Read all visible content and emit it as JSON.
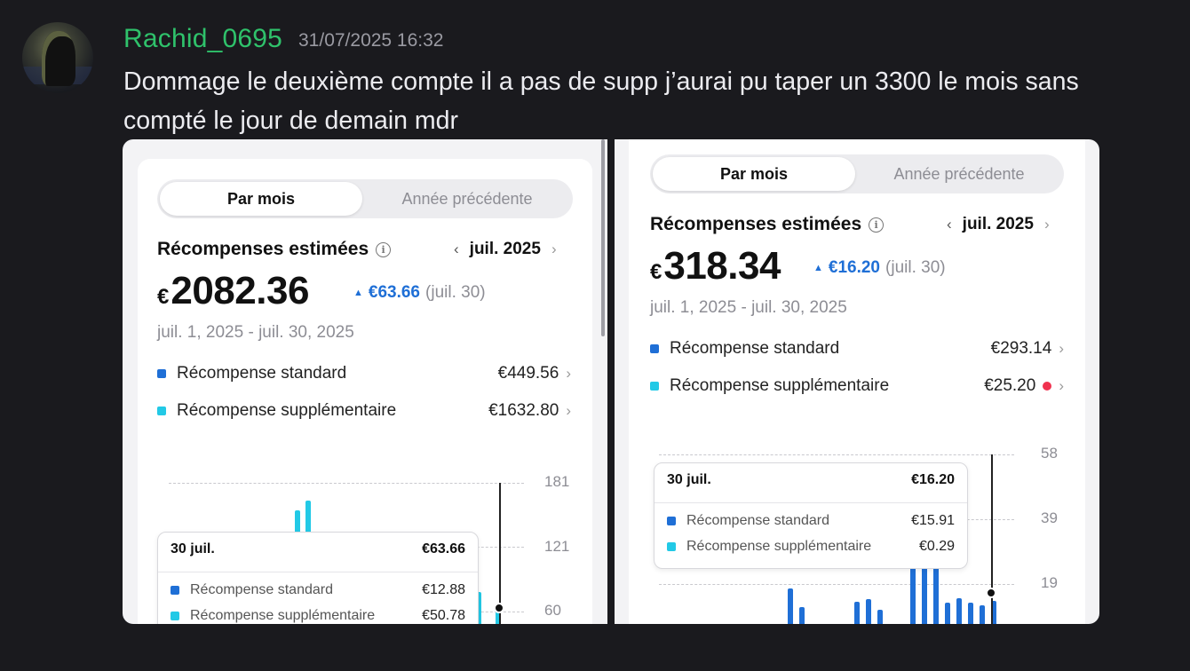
{
  "message": {
    "username": "Rachid_0695",
    "timestamp": "31/07/2025 16:32",
    "text": "Dommage le deuxième compte il a pas de supp j’aurai pu taper un 3300 le mois sans compté le jour de demain mdr"
  },
  "colors": {
    "standard": "#1f6fd6",
    "supplementaire": "#22c9e6",
    "delta": "#1f6fd6",
    "username": "#2fc26b"
  },
  "screenshots": [
    {
      "tab_active": "Par mois",
      "tab_inactive": "Année précédente",
      "title": "Récompenses estimées",
      "info_icon": "i",
      "month": "juil. 2025",
      "currency": "€",
      "amount": "2082.36",
      "delta": "€63.66",
      "delta_date": "(juil. 30)",
      "range": "juil. 1, 2025 - juil. 30, 2025",
      "rows": [
        {
          "label": "Récompense standard",
          "value": "€449.56"
        },
        {
          "label": "Récompense supplémentaire",
          "value": "€1632.80"
        }
      ],
      "axis_labels": [
        "181",
        "121",
        "60"
      ],
      "tooltip": {
        "date": "30 juil.",
        "total": "€63.66",
        "rows": [
          {
            "label": "Récompense standard",
            "value": "€12.88"
          },
          {
            "label": "Récompense supplémentaire",
            "value": "€50.78"
          }
        ]
      }
    },
    {
      "tab_active": "Par mois",
      "tab_inactive": "Année précédente",
      "title": "Récompenses estimées",
      "info_icon": "i",
      "month": "juil. 2025",
      "currency": "€",
      "amount": "318.34",
      "delta": "€16.20",
      "delta_date": "(juil. 30)",
      "range": "juil. 1, 2025 - juil. 30, 2025",
      "rows": [
        {
          "label": "Récompense standard",
          "value": "€293.14"
        },
        {
          "label": "Récompense supplémentaire",
          "value": "€25.20"
        }
      ],
      "axis_labels": [
        "58",
        "39",
        "19"
      ],
      "tooltip": {
        "date": "30 juil.",
        "total": "€16.20",
        "rows": [
          {
            "label": "Récompense standard",
            "value": "€15.91"
          },
          {
            "label": "Récompense supplémentaire",
            "value": "€0.29"
          }
        ]
      }
    }
  ]
}
